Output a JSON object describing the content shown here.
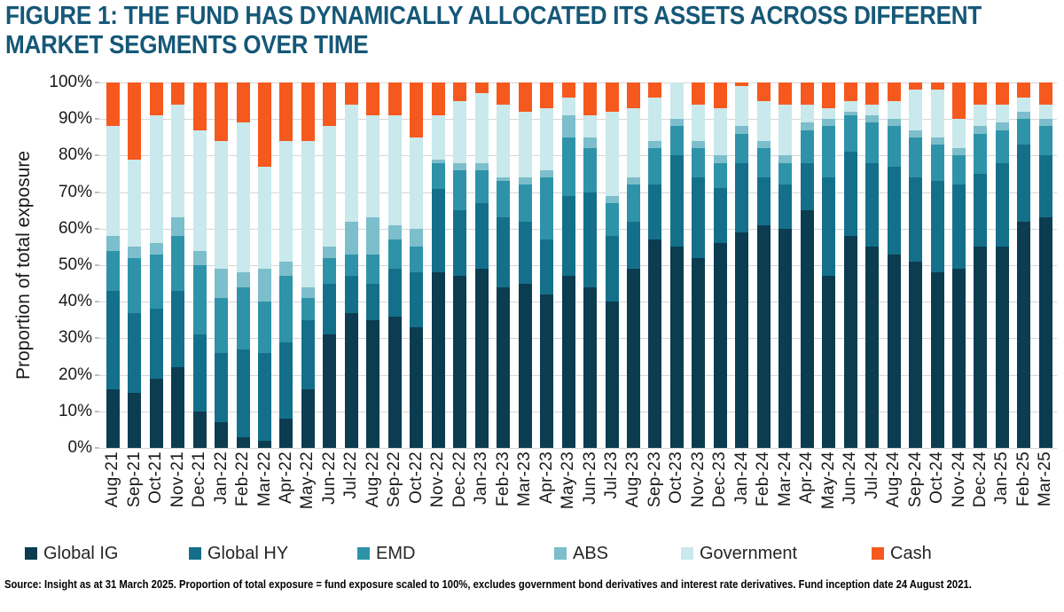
{
  "figure": {
    "title_line1": "FIGURE 1: THE FUND HAS DYNAMICALLY ALLOCATED ITS ASSETS ACROSS DIFFERENT",
    "title_line2": "MARKET SEGMENTS OVER TIME"
  },
  "footer": {
    "text": "Source: Insight as at 31 March 2025. Proportion of total exposure = fund exposure scaled to 100%, excludes government bond derivatives and interest rate derivatives. Fund inception date 24 August 2021."
  },
  "colors": {
    "title": "#155878",
    "gridline": "#d6d6d6",
    "global_ig": "#0C3C50",
    "global_hy": "#14708A",
    "emd": "#2E93A9",
    "abs": "#7CBECB",
    "government": "#C9E9EC",
    "cash": "#F6591D"
  },
  "chart_data": {
    "type": "bar",
    "stacked": true,
    "title": "The fund has dynamically allocated its assets across different market segments over time",
    "ylabel": "Proportion of total exposure",
    "xlabel": "",
    "ylim": [
      0,
      100
    ],
    "grid": true,
    "legend_position": "bottom",
    "y_ticks": [
      "100%",
      "90%",
      "80%",
      "70%",
      "60%",
      "50%",
      "40%",
      "30%",
      "20%",
      "10%",
      "0%"
    ],
    "categories": [
      "Aug-21",
      "Sep-21",
      "Oct-21",
      "Nov-21",
      "Dec-21",
      "Jan-22",
      "Feb-22",
      "Mar-22",
      "Apr-22",
      "May-22",
      "Jun-22",
      "Jul-22",
      "Aug-22",
      "Sep-22",
      "Oct-22",
      "Nov-22",
      "Dec-22",
      "Jan-23",
      "Feb-23",
      "Mar-23",
      "Apr-23",
      "May-23",
      "Jun-23",
      "Jul-23",
      "Aug-23",
      "Sep-23",
      "Oct-23",
      "Nov-23",
      "Dec-23",
      "Jan-24",
      "Feb-24",
      "Mar-24",
      "Apr-24",
      "May-24",
      "Jun-24",
      "Jul-24",
      "Aug-24",
      "Sep-24",
      "Oct-24",
      "Nov-24",
      "Dec-24",
      "Jan-25",
      "Feb-25",
      "Mar-25"
    ],
    "series": [
      {
        "name": "Global IG",
        "color": "#0C3C50",
        "values": [
          16,
          15,
          19,
          22,
          10,
          7,
          3,
          2,
          8,
          16,
          31,
          37,
          35,
          36,
          33,
          48,
          47,
          49,
          44,
          45,
          42,
          47,
          44,
          40,
          49,
          57,
          55,
          52,
          56,
          59,
          61,
          60,
          65,
          47,
          58,
          55,
          53,
          51,
          48,
          49,
          55,
          55,
          62,
          63
        ]
      },
      {
        "name": "Global HY",
        "color": "#14708A",
        "values": [
          27,
          22,
          19,
          21,
          21,
          19,
          24,
          24,
          21,
          19,
          14,
          10,
          10,
          13,
          15,
          23,
          18,
          18,
          19,
          17,
          15,
          22,
          26,
          18,
          13,
          15,
          25,
          22,
          15,
          19,
          13,
          12,
          13,
          27,
          23,
          23,
          24,
          23,
          25,
          23,
          20,
          23,
          21,
          17
        ]
      },
      {
        "name": "EMD",
        "color": "#2E93A9",
        "values": [
          11,
          15,
          15,
          15,
          19,
          15,
          17,
          14,
          18,
          6,
          7,
          6,
          8,
          8,
          7,
          7,
          11,
          9,
          10,
          10,
          17,
          16,
          12,
          9,
          10,
          10,
          8,
          8,
          7,
          8,
          8,
          6,
          9,
          14,
          10,
          11,
          11,
          11,
          10,
          8,
          11,
          9,
          7,
          8
        ]
      },
      {
        "name": "ABS",
        "color": "#7CBECB",
        "values": [
          4,
          3,
          3,
          5,
          4,
          8,
          4,
          9,
          4,
          3,
          3,
          9,
          10,
          4,
          5,
          1,
          2,
          2,
          1,
          2,
          2,
          6,
          3,
          2,
          2,
          2,
          2,
          2,
          2,
          2,
          2,
          2,
          2,
          2,
          1,
          2,
          2,
          2,
          2,
          2,
          2,
          2,
          2,
          2
        ]
      },
      {
        "name": "Government",
        "color": "#C9E9EC",
        "values": [
          30,
          24,
          35,
          31,
          33,
          35,
          41,
          28,
          33,
          40,
          33,
          32,
          28,
          30,
          25,
          12,
          17,
          19,
          20,
          18,
          17,
          5,
          6,
          23,
          19,
          12,
          10,
          10,
          13,
          11,
          11,
          14,
          5,
          3,
          3,
          3,
          5,
          11,
          13,
          8,
          6,
          5,
          4,
          4
        ]
      },
      {
        "name": "Cash",
        "color": "#F6591D",
        "values": [
          12,
          21,
          9,
          6,
          13,
          16,
          11,
          23,
          16,
          16,
          12,
          6,
          9,
          9,
          15,
          9,
          5,
          3,
          6,
          8,
          7,
          4,
          9,
          8,
          7,
          4,
          0,
          6,
          7,
          1,
          5,
          6,
          6,
          7,
          5,
          6,
          5,
          2,
          2,
          10,
          6,
          6,
          4,
          6
        ]
      }
    ]
  }
}
